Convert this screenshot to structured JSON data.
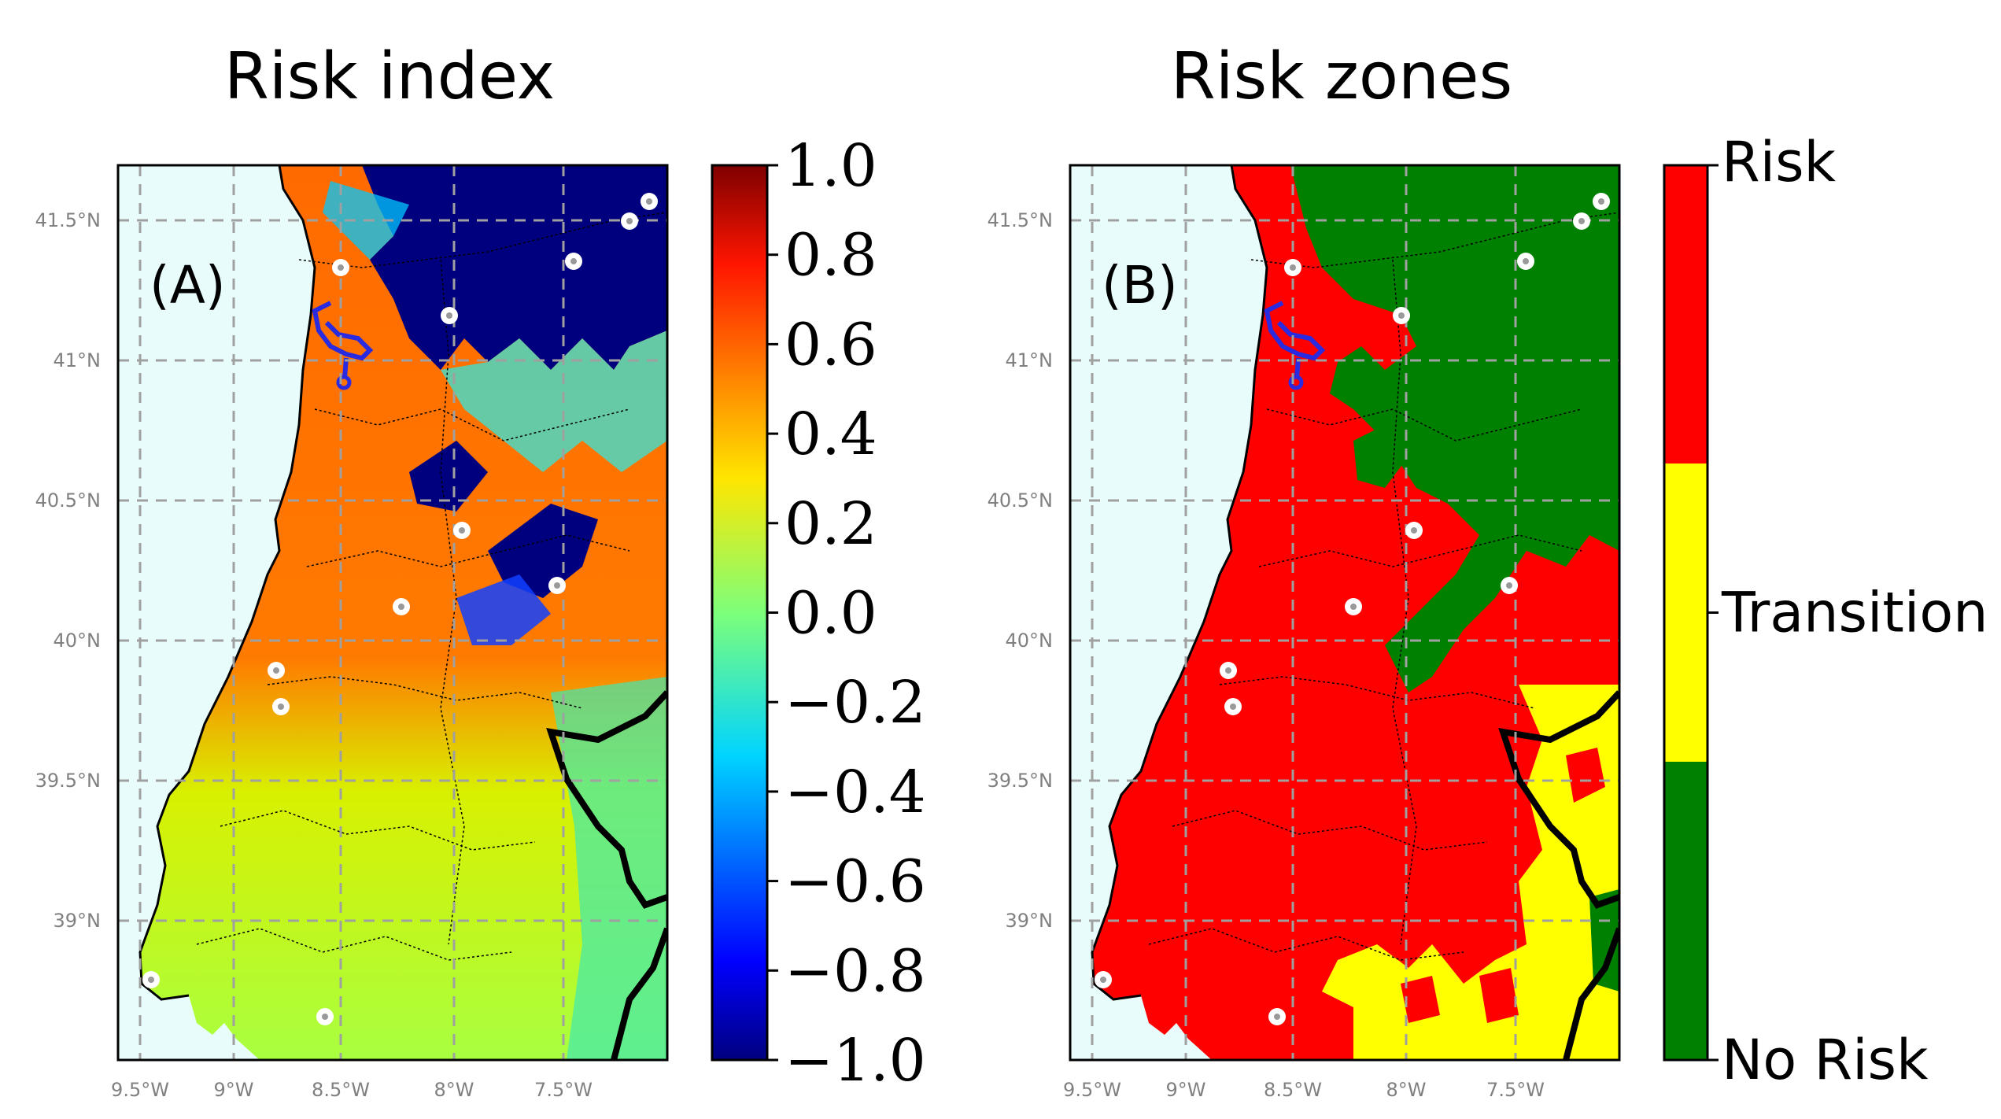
{
  "panels": [
    {
      "title": "Risk index",
      "label": "(A)",
      "colorbar_ticks": [
        "1.0",
        "0.8",
        "0.6",
        "0.4",
        "0.2",
        "0.0",
        "−0.2",
        "−0.4",
        "−0.6",
        "−0.8",
        "−1.0"
      ]
    },
    {
      "title": "Risk zones",
      "label": "(B)",
      "colorbar_classes": [
        {
          "label": "Risk",
          "color": "#ff0000"
        },
        {
          "label": "Transition",
          "color": "#ffff00"
        },
        {
          "label": "No Risk",
          "color": "#008000"
        }
      ]
    }
  ],
  "lat_ticks": [
    "41.5°N",
    "41°N",
    "40.5°N",
    "40°N",
    "39.5°N",
    "39°N"
  ],
  "lon_ticks": [
    "9.5°W",
    "9°W",
    "8.5°W",
    "8°W",
    "7.5°W"
  ],
  "colors": {
    "sea": "#e8fcfc",
    "risk": "#ff0000",
    "transition": "#ffff00",
    "no_risk": "#008000",
    "grid": "#a0a0a0",
    "river": "#2a2ae0"
  }
}
